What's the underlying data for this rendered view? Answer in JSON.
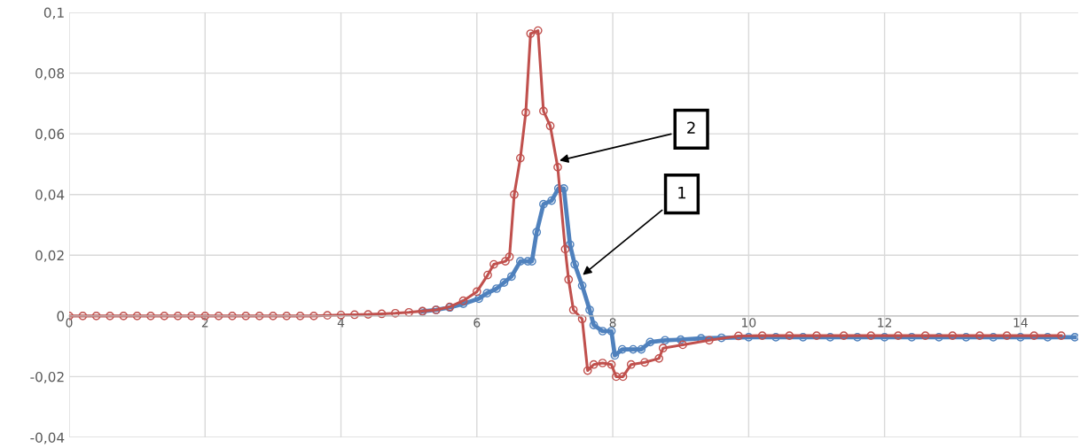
{
  "chart_data": {
    "type": "line",
    "marker": "circle",
    "line_style": "solid",
    "grid": true,
    "xlim": [
      0,
      14.85
    ],
    "ylim": [
      -0.04,
      0.1
    ],
    "xticks": [
      0,
      2,
      4,
      6,
      8,
      10,
      12,
      14
    ],
    "yticks": [
      {
        "value": -0.04,
        "label": "-0,04"
      },
      {
        "value": -0.02,
        "label": "-0,02"
      },
      {
        "value": 0,
        "label": "0"
      },
      {
        "value": 0.02,
        "label": "0,02"
      },
      {
        "value": 0.04,
        "label": "0,04"
      },
      {
        "value": 0.06,
        "label": "0,06"
      },
      {
        "value": 0.08,
        "label": "0,08"
      },
      {
        "value": 0.1,
        "label": "0,1"
      }
    ],
    "annotations": [
      {
        "text": "2",
        "x": 7.18,
        "y": 0.051
      },
      {
        "text": "1",
        "x": 7.53,
        "y": 0.013
      }
    ],
    "series": [
      {
        "color": "#4f81bd",
        "x": [
          5.2,
          5.4,
          5.6,
          5.8,
          6.03,
          6.15,
          6.29,
          6.4,
          6.51,
          6.64,
          6.75,
          6.81,
          6.88,
          6.98,
          7.1,
          7.2,
          7.28,
          7.37,
          7.44,
          7.55,
          7.66,
          7.72,
          7.85,
          7.98,
          8.03,
          8.14,
          8.3,
          8.42,
          8.55,
          8.77,
          9.0,
          9.3,
          9.6,
          10.0,
          10.4,
          10.8,
          11.2,
          11.6,
          12.0,
          12.4,
          12.8,
          13.2,
          13.6,
          14.0,
          14.4,
          14.8
        ],
        "values": [
          0.0015,
          0.002,
          0.0028,
          0.004,
          0.0057,
          0.0075,
          0.009,
          0.011,
          0.013,
          0.018,
          0.018,
          0.018,
          0.0276,
          0.0368,
          0.038,
          0.042,
          0.042,
          0.0235,
          0.017,
          0.01,
          0.002,
          -0.003,
          -0.005,
          -0.005,
          -0.013,
          -0.011,
          -0.011,
          -0.011,
          -0.0086,
          -0.008,
          -0.0078,
          -0.0074,
          -0.0072,
          -0.007,
          -0.007,
          -0.007,
          -0.007,
          -0.007,
          -0.007,
          -0.007,
          -0.007,
          -0.007,
          -0.007,
          -0.007,
          -0.007,
          -0.007
        ]
      },
      {
        "color": "#c0504d",
        "x": [
          0,
          0.2,
          0.4,
          0.6,
          0.8,
          1.0,
          1.2,
          1.4,
          1.6,
          1.8,
          2.0,
          2.2,
          2.4,
          2.6,
          2.8,
          3.0,
          3.2,
          3.4,
          3.6,
          3.8,
          4.0,
          4.2,
          4.4,
          4.6,
          4.8,
          5.0,
          5.2,
          5.4,
          5.6,
          5.8,
          6.0,
          6.16,
          6.25,
          6.42,
          6.48,
          6.55,
          6.64,
          6.72,
          6.79,
          6.9,
          6.98,
          7.08,
          7.19,
          7.3,
          7.35,
          7.42,
          7.55,
          7.63,
          7.72,
          7.85,
          7.98,
          8.05,
          8.15,
          8.27,
          8.47,
          8.68,
          8.74,
          9.03,
          9.42,
          9.85,
          10.2,
          10.6,
          11.0,
          11.4,
          11.8,
          12.2,
          12.6,
          13.0,
          13.4,
          13.8,
          14.2,
          14.6
        ],
        "values": [
          0,
          0,
          0,
          0,
          0,
          0,
          0,
          0,
          0,
          0,
          0,
          0,
          0,
          0,
          0,
          0,
          0,
          0,
          0,
          0.0002,
          0.0003,
          0.0004,
          0.0005,
          0.0007,
          0.0009,
          0.0012,
          0.0016,
          0.002,
          0.003,
          0.005,
          0.008,
          0.0135,
          0.017,
          0.018,
          0.0195,
          0.04,
          0.052,
          0.067,
          0.093,
          0.094,
          0.0675,
          0.0626,
          0.049,
          0.022,
          0.012,
          0.002,
          -0.001,
          -0.018,
          -0.016,
          -0.0155,
          -0.016,
          -0.02,
          -0.02,
          -0.016,
          -0.0153,
          -0.014,
          -0.0106,
          -0.0095,
          -0.008,
          -0.0066,
          -0.0065,
          -0.0065,
          -0.0065,
          -0.0065,
          -0.0065,
          -0.0065,
          -0.0065,
          -0.0065,
          -0.0065,
          -0.0065,
          -0.0065,
          -0.0065
        ]
      }
    ]
  }
}
